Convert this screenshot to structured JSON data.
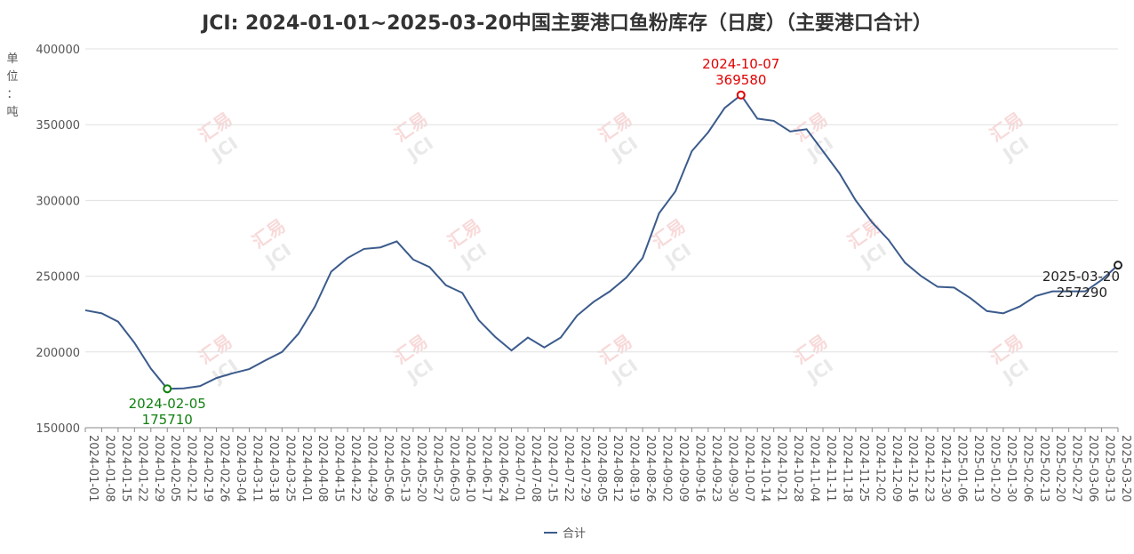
{
  "chart_data": {
    "type": "line",
    "title": "JCI: 2024-01-01~2025-03-20中国主要港口鱼粉库存（日度）（主要港口合计）",
    "y_label": "单位：吨",
    "watermark": [
      "汇易",
      "JCI"
    ],
    "categories": [
      "2024-01-01",
      "2024-01-08",
      "2024-01-15",
      "2024-01-22",
      "2024-01-29",
      "2024-02-05",
      "2024-02-12",
      "2024-02-19",
      "2024-02-26",
      "2024-03-04",
      "2024-03-11",
      "2024-03-18",
      "2024-03-25",
      "2024-04-01",
      "2024-04-08",
      "2024-04-15",
      "2024-04-22",
      "2024-04-29",
      "2024-05-06",
      "2024-05-13",
      "2024-05-20",
      "2024-05-27",
      "2024-06-03",
      "2024-06-10",
      "2024-06-17",
      "2024-06-24",
      "2024-07-01",
      "2024-07-08",
      "2024-07-15",
      "2024-07-22",
      "2024-07-29",
      "2024-08-05",
      "2024-08-12",
      "2024-08-19",
      "2024-08-26",
      "2024-09-02",
      "2024-09-09",
      "2024-09-16",
      "2024-09-23",
      "2024-09-30",
      "2024-10-07",
      "2024-10-14",
      "2024-10-21",
      "2024-10-28",
      "2024-11-04",
      "2024-11-11",
      "2024-11-18",
      "2024-11-25",
      "2024-12-02",
      "2024-12-09",
      "2024-12-16",
      "2024-12-23",
      "2024-12-30",
      "2025-01-06",
      "2025-01-13",
      "2025-01-20",
      "2025-01-30",
      "2025-02-06",
      "2025-02-13",
      "2025-02-20",
      "2025-02-27",
      "2025-03-06",
      "2025-03-13",
      "2025-03-20"
    ],
    "series": [
      {
        "name": "合计",
        "color": "#3b5b8c",
        "values": [
          227500,
          225500,
          220000,
          206000,
          189000,
          175710,
          176000,
          177500,
          182800,
          186000,
          188700,
          194500,
          200000,
          212000,
          229800,
          253000,
          262000,
          268000,
          269000,
          273000,
          261000,
          256000,
          244000,
          239000,
          221000,
          210000,
          201000,
          209500,
          203000,
          209500,
          224000,
          233000,
          240000,
          249000,
          262000,
          291500,
          306000,
          332500,
          345000,
          361000,
          369580,
          354000,
          352500,
          345500,
          347000,
          332500,
          318000,
          300000,
          285500,
          274000,
          259000,
          250000,
          243000,
          242500,
          235500,
          227000,
          225500,
          230000,
          237000,
          240000,
          240000,
          240000,
          247500,
          257290
        ]
      }
    ],
    "ylim": [
      150000,
      400000
    ],
    "yticks": [
      150000,
      200000,
      250000,
      300000,
      350000,
      400000
    ],
    "grid": true,
    "max_color": "#e00000",
    "min_color": "#108010",
    "last_color": "#222222"
  }
}
